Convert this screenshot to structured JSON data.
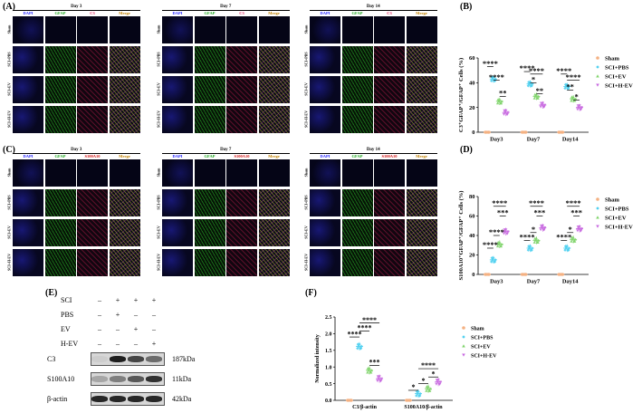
{
  "panels": {
    "A": "(A)",
    "B": "(B)",
    "C": "(C)",
    "D": "(D)",
    "E": "(E)",
    "F": "(F)"
  },
  "image_grids": {
    "columns_A": [
      "DAPI",
      "GFAP",
      "C3",
      "Merge"
    ],
    "columns_C": [
      "DAPI",
      "GFAP",
      "S100A10",
      "Merge"
    ],
    "rows": [
      "Sham",
      "SCI+PBS",
      "SCI+EV",
      "SCI+H-EV"
    ],
    "days": [
      "Day 3",
      "Day 7",
      "Day 14"
    ],
    "colors": {
      "DAPI": "#2020ff",
      "GFAP": "#1fa81f",
      "C3": "#e01e5a",
      "S100A10": "#d01010",
      "Merge": "#c08000"
    }
  },
  "groups": [
    {
      "name": "Sham",
      "color": "#f4b183",
      "marker": "circle"
    },
    {
      "name": "SCI+PBS",
      "color": "#4fd0f0",
      "marker": "diamond"
    },
    {
      "name": "SCI+EV",
      "color": "#7fd46a",
      "marker": "triangle-up"
    },
    {
      "name": "SCI+H-EV",
      "color": "#c86ae0",
      "marker": "triangle-down"
    }
  ],
  "chart_data": [
    {
      "id": "B",
      "type": "scatter",
      "ylabel": "C3⁺GFAP⁺/GFAP⁺ Cells (%)",
      "categories": [
        "Day3",
        "Day7",
        "Day14"
      ],
      "ylim": [
        0,
        60
      ],
      "yticks": [
        0,
        20,
        40,
        60
      ],
      "series": [
        {
          "name": "Sham",
          "values": [
            0,
            0,
            0
          ]
        },
        {
          "name": "SCI+PBS",
          "values": [
            43,
            39,
            37
          ]
        },
        {
          "name": "SCI+EV",
          "values": [
            25,
            29,
            27
          ]
        },
        {
          "name": "SCI+H-EV",
          "values": [
            16,
            22,
            20
          ]
        }
      ],
      "significance": [
        {
          "cat": 0,
          "from": 0,
          "to": 1,
          "label": "****",
          "y": 53
        },
        {
          "cat": 0,
          "from": 1,
          "to": 2,
          "label": "****",
          "y": 42
        },
        {
          "cat": 0,
          "from": 2,
          "to": 3,
          "label": "**",
          "y": 29
        },
        {
          "cat": 1,
          "from": 0,
          "to": 1,
          "label": "****",
          "y": 49
        },
        {
          "cat": 1,
          "from": 1,
          "to": 2,
          "label": "*",
          "y": 40
        },
        {
          "cat": 1,
          "from": 1,
          "to": 3,
          "label": "****",
          "y": 47
        },
        {
          "cat": 1,
          "from": 2,
          "to": 3,
          "label": "**",
          "y": 31
        },
        {
          "cat": 2,
          "from": 0,
          "to": 1,
          "label": "****",
          "y": 47
        },
        {
          "cat": 2,
          "from": 1,
          "to": 2,
          "label": "**",
          "y": 34
        },
        {
          "cat": 2,
          "from": 1,
          "to": 3,
          "label": "****",
          "y": 42
        },
        {
          "cat": 2,
          "from": 2,
          "to": 3,
          "label": "*",
          "y": 26
        }
      ]
    },
    {
      "id": "D",
      "type": "scatter",
      "ylabel": "S100A10⁺GFAP⁺/GFAP⁺ Cells (%)",
      "categories": [
        "Day3",
        "Day7",
        "Day14"
      ],
      "ylim": [
        0,
        80
      ],
      "yticks": [
        0,
        20,
        40,
        60,
        80
      ],
      "series": [
        {
          "name": "Sham",
          "values": [
            0,
            0,
            0
          ]
        },
        {
          "name": "SCI+PBS",
          "values": [
            15,
            27,
            27
          ]
        },
        {
          "name": "SCI+EV",
          "values": [
            31,
            35,
            36
          ]
        },
        {
          "name": "SCI+H-EV",
          "values": [
            44,
            48,
            47
          ]
        }
      ],
      "significance": [
        {
          "cat": 0,
          "from": 0,
          "to": 1,
          "label": "****",
          "y": 27
        },
        {
          "cat": 0,
          "from": 1,
          "to": 2,
          "label": "****",
          "y": 40
        },
        {
          "cat": 0,
          "from": 1,
          "to": 3,
          "label": "****",
          "y": 70
        },
        {
          "cat": 0,
          "from": 2,
          "to": 3,
          "label": "***",
          "y": 60
        },
        {
          "cat": 1,
          "from": 0,
          "to": 1,
          "label": "****",
          "y": 35
        },
        {
          "cat": 1,
          "from": 1,
          "to": 2,
          "label": "*",
          "y": 43
        },
        {
          "cat": 1,
          "from": 1,
          "to": 3,
          "label": "****",
          "y": 70
        },
        {
          "cat": 1,
          "from": 2,
          "to": 3,
          "label": "***",
          "y": 60
        },
        {
          "cat": 2,
          "from": 0,
          "to": 1,
          "label": "****",
          "y": 35
        },
        {
          "cat": 2,
          "from": 1,
          "to": 2,
          "label": "*",
          "y": 43
        },
        {
          "cat": 2,
          "from": 1,
          "to": 3,
          "label": "****",
          "y": 70
        },
        {
          "cat": 2,
          "from": 2,
          "to": 3,
          "label": "***",
          "y": 60
        }
      ]
    },
    {
      "id": "F",
      "type": "scatter",
      "ylabel": "Normalized intensity",
      "categories": [
        "C3/β-actin",
        "S100A10/β-actin"
      ],
      "ylim": [
        0,
        2.5
      ],
      "yticks": [
        0,
        0.5,
        1.0,
        1.5,
        2.0,
        2.5
      ],
      "yticklabels": [
        "0.0",
        "0.5",
        "1.0",
        "1.5",
        "2.0",
        "2.5"
      ],
      "series": [
        {
          "name": "Sham",
          "values": [
            0,
            0
          ]
        },
        {
          "name": "SCI+PBS",
          "values": [
            1.62,
            0.2
          ]
        },
        {
          "name": "SCI+EV",
          "values": [
            0.9,
            0.35
          ]
        },
        {
          "name": "SCI+H-EV",
          "values": [
            0.65,
            0.55
          ]
        }
      ],
      "significance": [
        {
          "cat": 0,
          "from": 0,
          "to": 1,
          "label": "****",
          "y": 1.9
        },
        {
          "cat": 0,
          "from": 1,
          "to": 2,
          "label": "****",
          "y": 2.08
        },
        {
          "cat": 0,
          "from": 1,
          "to": 3,
          "label": "****",
          "y": 2.32
        },
        {
          "cat": 0,
          "from": 2,
          "to": 3,
          "label": "***",
          "y": 1.05
        },
        {
          "cat": 1,
          "from": 0,
          "to": 1,
          "label": "*",
          "y": 0.3
        },
        {
          "cat": 1,
          "from": 1,
          "to": 2,
          "label": "*",
          "y": 0.5
        },
        {
          "cat": 1,
          "from": 1,
          "to": 3,
          "label": "****",
          "y": 0.95
        },
        {
          "cat": 1,
          "from": 2,
          "to": 3,
          "label": "*",
          "y": 0.7
        }
      ]
    }
  ],
  "western_blot": {
    "conditions": [
      {
        "label": "SCI",
        "signs": [
          "–",
          "+",
          "+",
          "+"
        ]
      },
      {
        "label": "PBS",
        "signs": [
          "–",
          "+",
          "–",
          "–"
        ]
      },
      {
        "label": "EV",
        "signs": [
          "–",
          "–",
          "+",
          "–"
        ]
      },
      {
        "label": "H-EV",
        "signs": [
          "–",
          "–",
          "–",
          "+"
        ]
      }
    ],
    "proteins": [
      {
        "label": "C3",
        "size": "187kDa",
        "intensity": [
          0.0,
          0.95,
          0.75,
          0.55
        ]
      },
      {
        "label": "S100A10",
        "size": "11kDa",
        "intensity": [
          0.25,
          0.45,
          0.65,
          0.85
        ]
      },
      {
        "label": "β-actin",
        "size": "42kDa",
        "intensity": [
          0.9,
          0.9,
          0.9,
          0.9
        ]
      }
    ]
  }
}
